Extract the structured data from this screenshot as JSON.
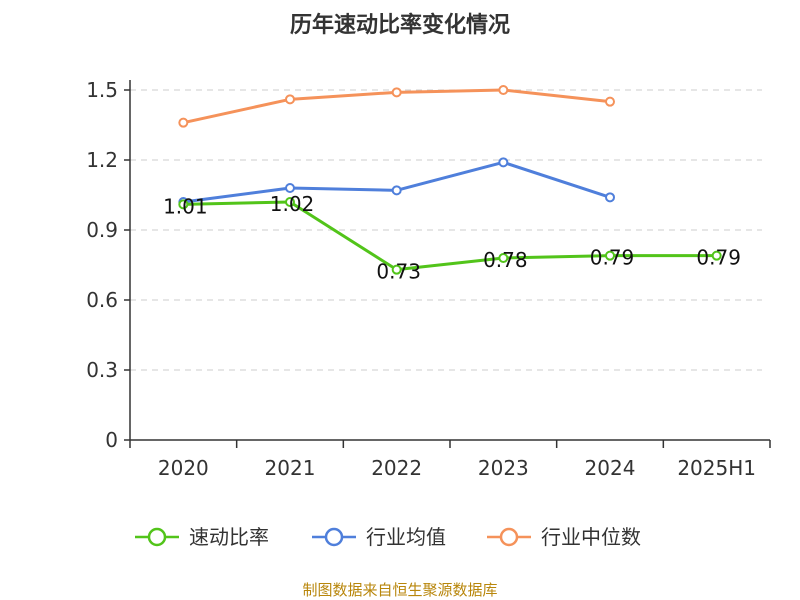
{
  "chart_data": {
    "type": "line",
    "title": "历年速动比率变化情况",
    "categories": [
      "2020",
      "2021",
      "2022",
      "2023",
      "2024",
      "2025H1"
    ],
    "ylim": [
      0,
      1.5
    ],
    "yticks": [
      0,
      0.3,
      0.6,
      0.9,
      1.2,
      1.5
    ],
    "ytick_labels": [
      "0",
      "0.3",
      "0.6",
      "0.9",
      "1.2",
      "1.5"
    ],
    "grid": true,
    "legend_position": "bottom",
    "series": [
      {
        "name": "速动比率",
        "color": "#52c41a",
        "values": [
          1.01,
          1.02,
          0.73,
          0.78,
          0.79,
          0.79
        ],
        "data_labels": [
          "1.01",
          "1.02",
          "0.73",
          "0.78",
          "0.79",
          "0.79"
        ]
      },
      {
        "name": "行业均值",
        "color": "#4f7fdb",
        "values": [
          1.02,
          1.08,
          1.07,
          1.19,
          1.04,
          null
        ]
      },
      {
        "name": "行业中位数",
        "color": "#f5925a",
        "values": [
          1.36,
          1.46,
          1.49,
          1.5,
          1.45,
          null
        ]
      }
    ]
  },
  "source_text": "制图数据来自恒生聚源数据库"
}
